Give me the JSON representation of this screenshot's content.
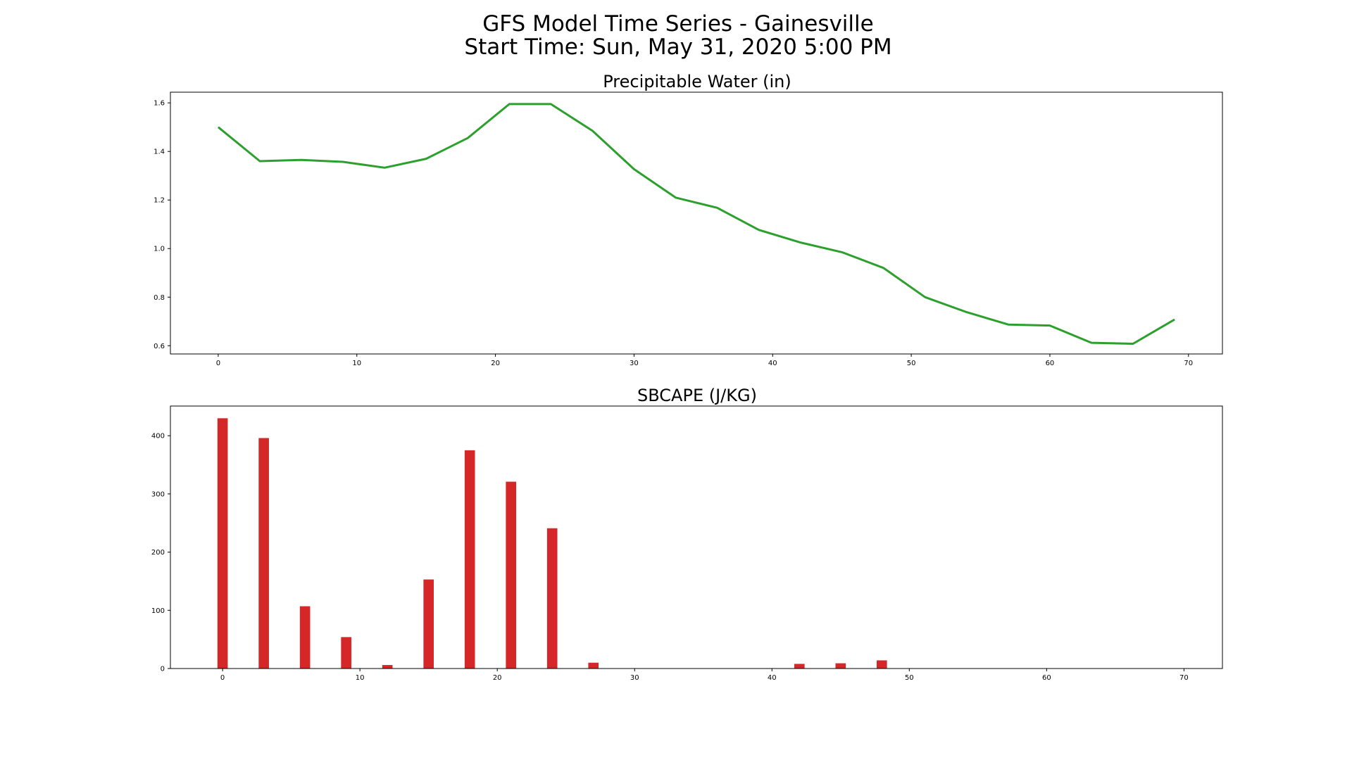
{
  "figure": {
    "title_line1": "GFS Model Time Series - Gainesville",
    "title_line2": "Start Time: Sun, May 31, 2020 5:00 PM"
  },
  "chart_data": [
    {
      "type": "line",
      "title": "Precipitable Water (in)",
      "xlabel": "",
      "ylabel": "",
      "xlim": [
        -3.45,
        72.45
      ],
      "ylim": [
        0.566,
        1.644
      ],
      "xticks": [
        0,
        10,
        20,
        30,
        40,
        50,
        60,
        70
      ],
      "yticks": [
        0.6,
        0.8,
        1.0,
        1.2,
        1.4,
        1.6
      ],
      "ytick_labels": [
        "0.6",
        "0.8",
        "1.0",
        "1.2",
        "1.4",
        "1.6"
      ],
      "grid": false,
      "color": "#2ca02c",
      "x": [
        0,
        3,
        6,
        9,
        12,
        15,
        18,
        21,
        24,
        27,
        30,
        33,
        36,
        39,
        42,
        45,
        48,
        51,
        54,
        57,
        60,
        63,
        66,
        69
      ],
      "values": [
        1.5,
        1.36,
        1.365,
        1.357,
        1.333,
        1.37,
        1.455,
        1.595,
        1.595,
        1.485,
        1.327,
        1.21,
        1.168,
        1.077,
        1.025,
        0.985,
        0.92,
        0.8,
        0.738,
        0.687,
        0.683,
        0.612,
        0.608,
        0.708
      ]
    },
    {
      "type": "bar",
      "title": "SBCAPE (J/KG)",
      "xlabel": "",
      "ylabel": "",
      "xlim": [
        -3.8,
        72.8
      ],
      "ylim": [
        0,
        451
      ],
      "xticks": [
        0,
        10,
        20,
        30,
        40,
        50,
        60,
        70
      ],
      "yticks": [
        0,
        100,
        200,
        300,
        400
      ],
      "grid": false,
      "color": "#d62728",
      "bar_width": 0.75,
      "x": [
        0,
        3,
        6,
        9,
        12,
        15,
        18,
        21,
        24,
        27,
        30,
        33,
        36,
        39,
        42,
        45,
        48,
        51,
        54,
        57,
        60,
        63,
        66,
        69
      ],
      "values": [
        430,
        396,
        107,
        54,
        6,
        153,
        375,
        321,
        241,
        10,
        0,
        0,
        0,
        0,
        8,
        9,
        14,
        0,
        0,
        0,
        0,
        0,
        0,
        0
      ]
    }
  ]
}
